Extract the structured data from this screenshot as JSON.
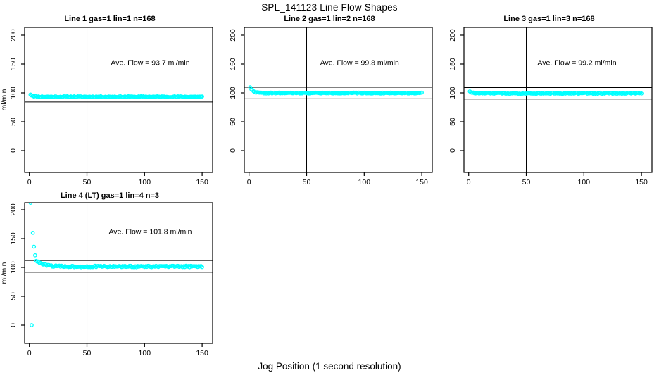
{
  "title": "SPL_141123  Line Flow Shapes",
  "xlabel": "Jog Position (1 second resolution)",
  "colors": {
    "points": "#00ffff",
    "axis": "#000000",
    "background": "#ffffff"
  },
  "chart_data": [
    {
      "type": "scatter",
      "title": "Line 1 gas=1 lin=1 n=168",
      "n": 168,
      "ave_flow": 93.7,
      "annotation": "Ave. Flow =  93.7  ml/min",
      "annotation_xy": [
        105,
        148
      ],
      "ylabel": "ml/min",
      "x_ticks": [
        0,
        50,
        100,
        150
      ],
      "y_ticks": [
        0,
        50,
        100,
        150,
        200
      ],
      "xlim": [
        -4.1,
        159.1
      ],
      "ylim": [
        -37.8,
        213.4
      ],
      "ref_lines_y": [
        103.1,
        84.3
      ],
      "vline_x": 50,
      "marker": "open-circle",
      "series": {
        "x_start": 1,
        "x_end": 150,
        "start_value": 97.5,
        "settle_value": 93.4,
        "tau": 2.0,
        "noise": 0.85,
        "seed": 11,
        "outlier_points": []
      }
    },
    {
      "type": "scatter",
      "title": "Line 2 gas=1 lin=2 n=168",
      "n": 168,
      "ave_flow": 99.8,
      "annotation": "Ave. Flow =  99.8  ml/min",
      "annotation_xy": [
        96,
        148
      ],
      "ylabel": "",
      "x_ticks": [
        0,
        50,
        100,
        150
      ],
      "y_ticks": [
        0,
        50,
        100,
        150,
        200
      ],
      "xlim": [
        -4.1,
        159.1
      ],
      "ylim": [
        -37.8,
        213.4
      ],
      "ref_lines_y": [
        109.8,
        89.8
      ],
      "vline_x": 50,
      "marker": "open-circle",
      "series": {
        "x_start": 1,
        "x_end": 150,
        "start_value": 110.0,
        "settle_value": 99.7,
        "tau": 2.5,
        "noise": 0.8,
        "seed": 22,
        "outlier_points": []
      }
    },
    {
      "type": "scatter",
      "title": "Line 3 gas=1 lin=3 n=168",
      "n": 168,
      "ave_flow": 99.2,
      "annotation": "Ave. Flow =  99.2  ml/min",
      "annotation_xy": [
        94,
        148
      ],
      "ylabel": "",
      "x_ticks": [
        0,
        50,
        100,
        150
      ],
      "y_ticks": [
        0,
        50,
        100,
        150,
        200
      ],
      "xlim": [
        -4.1,
        159.1
      ],
      "ylim": [
        -37.8,
        213.4
      ],
      "ref_lines_y": [
        109.1,
        89.3
      ],
      "vline_x": 50,
      "marker": "open-circle",
      "series": {
        "x_start": 1,
        "x_end": 150,
        "start_value": 103.0,
        "settle_value": 99.4,
        "tau": 1.5,
        "noise": 1.0,
        "seed": 33,
        "outlier_points": []
      }
    },
    {
      "type": "scatter",
      "title": "Line 4 (LT) gas=1 lin=4 n=3",
      "n": 3,
      "ave_flow": 101.8,
      "annotation": "Ave. Flow =  101.8  ml/min",
      "annotation_xy": [
        105,
        158
      ],
      "ylabel": "ml/min",
      "x_ticks": [
        0,
        50,
        100,
        150
      ],
      "y_ticks": [
        0,
        50,
        100,
        150,
        200
      ],
      "xlim": [
        -4.1,
        159.1
      ],
      "ylim": [
        -31.7,
        212.2
      ],
      "ref_lines_y": [
        112.0,
        91.6
      ],
      "vline_x": 50,
      "marker": "open-circle",
      "series": {
        "x_start": 6,
        "x_end": 150,
        "start_value": 112.0,
        "settle_value": 101.6,
        "tau": 6.0,
        "noise": 1.3,
        "seed": 44,
        "outlier_points": [
          [
            1,
            212
          ],
          [
            2,
            0
          ],
          [
            3,
            160
          ],
          [
            4,
            136
          ],
          [
            5,
            121
          ]
        ]
      }
    }
  ]
}
